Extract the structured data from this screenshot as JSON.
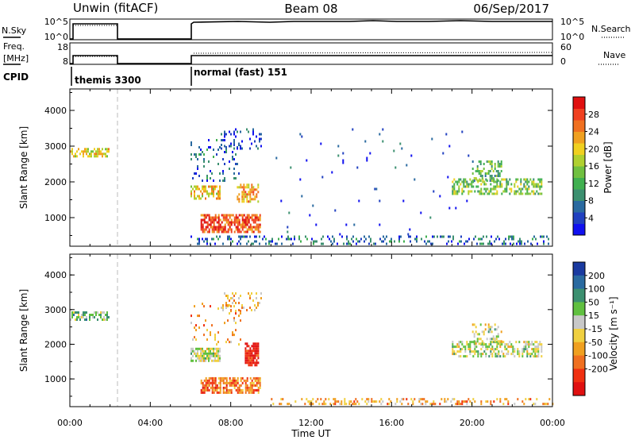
{
  "header": {
    "station": "Unwin (fitACF)",
    "beam": "Beam 08",
    "date": "06/Sep/2017"
  },
  "panels": {
    "nsky": {
      "label": "N.Sky",
      "right_label": "N.Search",
      "ticks_left": [
        "10^5",
        "10^0"
      ],
      "ticks_right": [
        "10^5",
        "10^0"
      ]
    },
    "freq": {
      "label_line1": "Freq.",
      "label_line2": "[MHz]",
      "right_label": "Nave",
      "ticks_left": [
        "18",
        "8"
      ],
      "ticks_right": [
        "60",
        "0"
      ]
    },
    "cpid": {
      "label": "CPID",
      "segments": [
        {
          "text": "themis 3300",
          "start_hour": 0
        },
        {
          "text": "normal (fast) 151",
          "start_hour": 6
        }
      ]
    }
  },
  "chart_data": [
    {
      "type": "heatmap",
      "name": "power",
      "ylabel": "Slant Range [km]",
      "ylim": [
        200,
        4600
      ],
      "yticks": [
        1000,
        2000,
        3000,
        4000
      ],
      "xlim": [
        0,
        24
      ],
      "colorbar": {
        "label": "Power [dB]",
        "range": [
          0,
          32
        ],
        "ticks": [
          4,
          8,
          12,
          16,
          20,
          24,
          28
        ],
        "colors": [
          "#1010f0",
          "#2040c0",
          "#2a6aa0",
          "#3c9070",
          "#40b050",
          "#70c040",
          "#b0d030",
          "#f0d020",
          "#f0a020",
          "#f07020",
          "#f04020",
          "#e01010"
        ]
      },
      "regions": [
        {
          "x": [
            0.0,
            1.9
          ],
          "r": [
            2700,
            2950
          ],
          "level": 0.6,
          "density": 0.6
        },
        {
          "x": [
            6.0,
            7.5
          ],
          "r": [
            1550,
            1900
          ],
          "level": 0.65,
          "density": 0.6
        },
        {
          "x": [
            6.5,
            9.5
          ],
          "r": [
            600,
            1100
          ],
          "level": 0.85,
          "density": 0.7
        },
        {
          "x": [
            8.3,
            9.4
          ],
          "r": [
            1450,
            1950
          ],
          "level": 0.7,
          "density": 0.6
        },
        {
          "x": [
            6.0,
            8.5
          ],
          "r": [
            2000,
            3200
          ],
          "level": 0.2,
          "density": 0.12
        },
        {
          "x": [
            7.5,
            9.5
          ],
          "r": [
            2950,
            3500
          ],
          "level": 0.15,
          "density": 0.2
        },
        {
          "x": [
            6.0,
            24.0
          ],
          "r": [
            250,
            500
          ],
          "level": 0.2,
          "density": 0.25
        },
        {
          "x": [
            19.0,
            23.5
          ],
          "r": [
            1650,
            2100
          ],
          "level": 0.45,
          "density": 0.5
        },
        {
          "x": [
            20.0,
            21.5
          ],
          "r": [
            2000,
            2600
          ],
          "level": 0.4,
          "density": 0.35
        },
        {
          "x": [
            10.0,
            20.0
          ],
          "r": [
            500,
            3500
          ],
          "level": 0.1,
          "density": 0.01
        }
      ]
    },
    {
      "type": "heatmap",
      "name": "velocity",
      "ylabel": "Slant Range [km]",
      "ylim": [
        200,
        4600
      ],
      "yticks": [
        1000,
        2000,
        3000,
        4000
      ],
      "xlim": [
        0,
        24
      ],
      "xticks": [
        "00:00",
        "04:00",
        "08:00",
        "12:00",
        "16:00",
        "20:00",
        "00:00"
      ],
      "xlabel": "Time UT",
      "colorbar": {
        "label": "Velocity [m s⁻¹]",
        "ticks": [
          "200",
          "100",
          "50",
          "15",
          "-15",
          "-50",
          "-100",
          "-200"
        ],
        "colors": [
          "#1a3aa0",
          "#2a6aa0",
          "#3c9070",
          "#60c040",
          "#c8c8c8",
          "#f0d040",
          "#f0a020",
          "#f07020",
          "#f03010",
          "#e01010"
        ]
      },
      "regions": [
        {
          "x": [
            0.0,
            1.9
          ],
          "r": [
            2700,
            2950
          ],
          "level": 0.35,
          "density": 0.6
        },
        {
          "x": [
            6.0,
            7.5
          ],
          "r": [
            1500,
            1900
          ],
          "level": 0.45,
          "density": 0.7
        },
        {
          "x": [
            6.5,
            9.5
          ],
          "r": [
            600,
            1050
          ],
          "level": 0.75,
          "density": 0.7
        },
        {
          "x": [
            8.7,
            9.4
          ],
          "r": [
            1400,
            2050
          ],
          "level": 0.95,
          "density": 0.8
        },
        {
          "x": [
            6.0,
            8.5
          ],
          "r": [
            2000,
            3200
          ],
          "level": 0.65,
          "density": 0.1
        },
        {
          "x": [
            7.5,
            9.5
          ],
          "r": [
            2950,
            3500
          ],
          "level": 0.6,
          "density": 0.2
        },
        {
          "x": [
            10.0,
            24.0
          ],
          "r": [
            250,
            450
          ],
          "level": 0.65,
          "density": 0.3
        },
        {
          "x": [
            19.0,
            23.5
          ],
          "r": [
            1650,
            2100
          ],
          "level": 0.45,
          "density": 0.55
        },
        {
          "x": [
            20.0,
            21.5
          ],
          "r": [
            2000,
            2600
          ],
          "level": 0.45,
          "density": 0.3
        }
      ]
    }
  ]
}
